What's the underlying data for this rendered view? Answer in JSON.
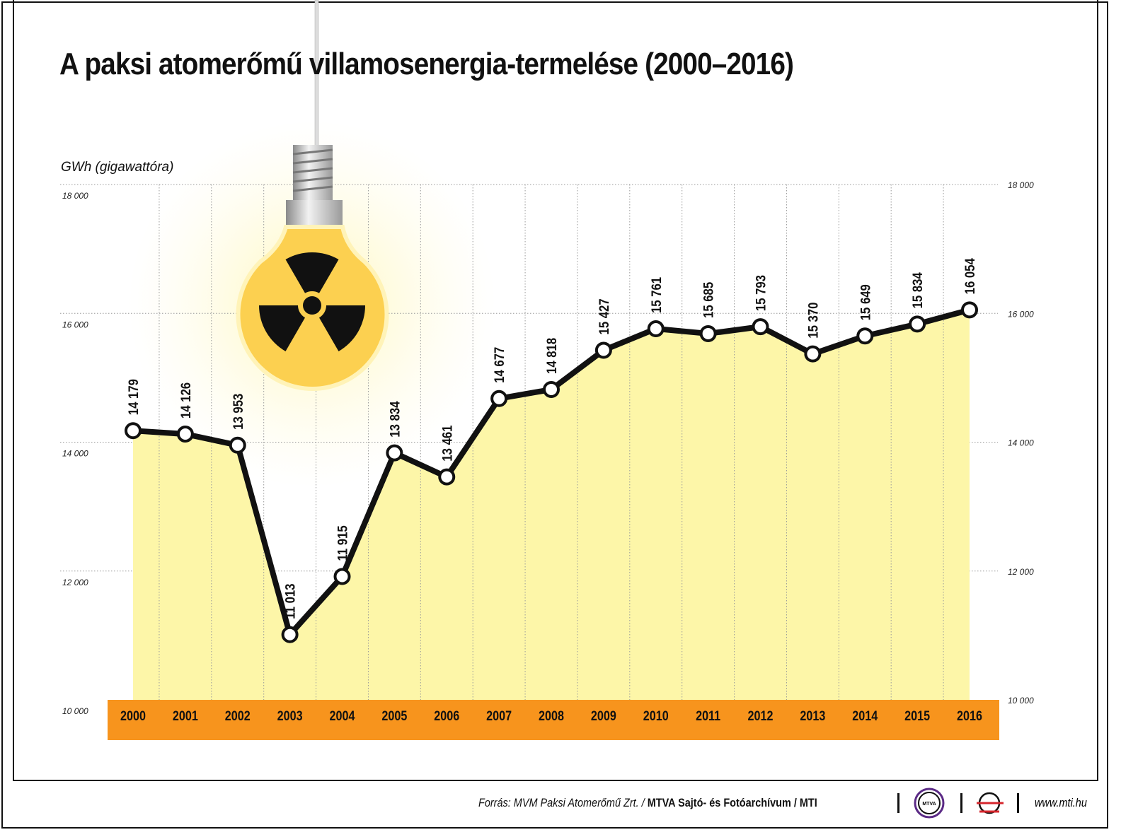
{
  "chart_data": {
    "type": "area",
    "title": "A paksi atomerőmű villamosenergia-termelése (2000–2016)",
    "ylabel": "GWh (gigawattóra)",
    "xlabel": "",
    "categories": [
      "2000",
      "2001",
      "2002",
      "2003",
      "2004",
      "2005",
      "2006",
      "2007",
      "2008",
      "2009",
      "2010",
      "2011",
      "2012",
      "2013",
      "2014",
      "2015",
      "2016"
    ],
    "values": [
      14179,
      14126,
      13953,
      11013,
      11915,
      13834,
      13461,
      14677,
      14818,
      15427,
      15761,
      15685,
      15793,
      15370,
      15649,
      15834,
      16054
    ],
    "value_labels": [
      "14 179",
      "14 126",
      "13 953",
      "11 013",
      "11 915",
      "13 834",
      "13 461",
      "14 677",
      "14 818",
      "15 427",
      "15 761",
      "15 685",
      "15 793",
      "15 370",
      "15 649",
      "15 834",
      "16 054"
    ],
    "ylim": [
      10000,
      18000
    ],
    "yticks": [
      10000,
      12000,
      14000,
      16000,
      18000
    ],
    "ytick_labels": [
      "10 000",
      "12 000",
      "14 000",
      "16 000",
      "18 000"
    ],
    "grid": true,
    "colors": {
      "fill": "#fdf6a8",
      "line": "#111111",
      "axis_band": "#f7941d",
      "bulb": "#fcd050"
    }
  },
  "footer": {
    "source": "Forrás: MVM Paksi Atomerőmű Zrt. / ",
    "credit": "MTVA Sajtó- és Fotóarchívum / MTI",
    "logo1": "MTVA",
    "website": "www.mti.hu"
  },
  "decoration": {
    "icon": "radiation-lightbulb-icon"
  }
}
